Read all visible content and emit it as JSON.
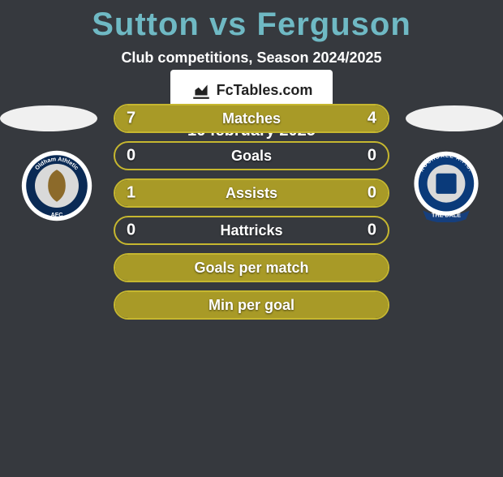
{
  "title_color": "#6fb9c4",
  "title": "Sutton vs Ferguson",
  "subtitle": "Club competitions, Season 2024/2025",
  "date": "16 february 2025",
  "brand_text": "FcTables.com",
  "accent_color": "#a89a27",
  "accent_border": "#c6b72f",
  "crest_left": {
    "ring": "#ffffff",
    "mid": "#0a2a55",
    "inner": "#d9d9d9",
    "accent": "#8c6a2a",
    "text_top": "Oldham Athletic",
    "text_bottom": "AFC"
  },
  "crest_right": {
    "ring": "#ffffff",
    "mid": "#0a3a7a",
    "inner": "#d9d9d9",
    "accent": "#0a3a7a",
    "text_top": "ROCHDALE A.F.C.",
    "banner_text": "THE DALE",
    "banner_fill": "#163f7d"
  },
  "rows": [
    {
      "label": "Matches",
      "left": "7",
      "right": "4",
      "left_w": 63.6,
      "right_w": 36.4
    },
    {
      "label": "Goals",
      "left": "0",
      "right": "0",
      "left_w": 0,
      "right_w": 0
    },
    {
      "label": "Assists",
      "left": "1",
      "right": "0",
      "left_w": 100,
      "right_w": 0
    },
    {
      "label": "Hattricks",
      "left": "0",
      "right": "0",
      "left_w": 0,
      "right_w": 0
    },
    {
      "label": "Goals per match",
      "left": "",
      "right": "",
      "left_w": 100,
      "right_w": 0
    },
    {
      "label": "Min per goal",
      "left": "",
      "right": "",
      "left_w": 100,
      "right_w": 0
    }
  ]
}
